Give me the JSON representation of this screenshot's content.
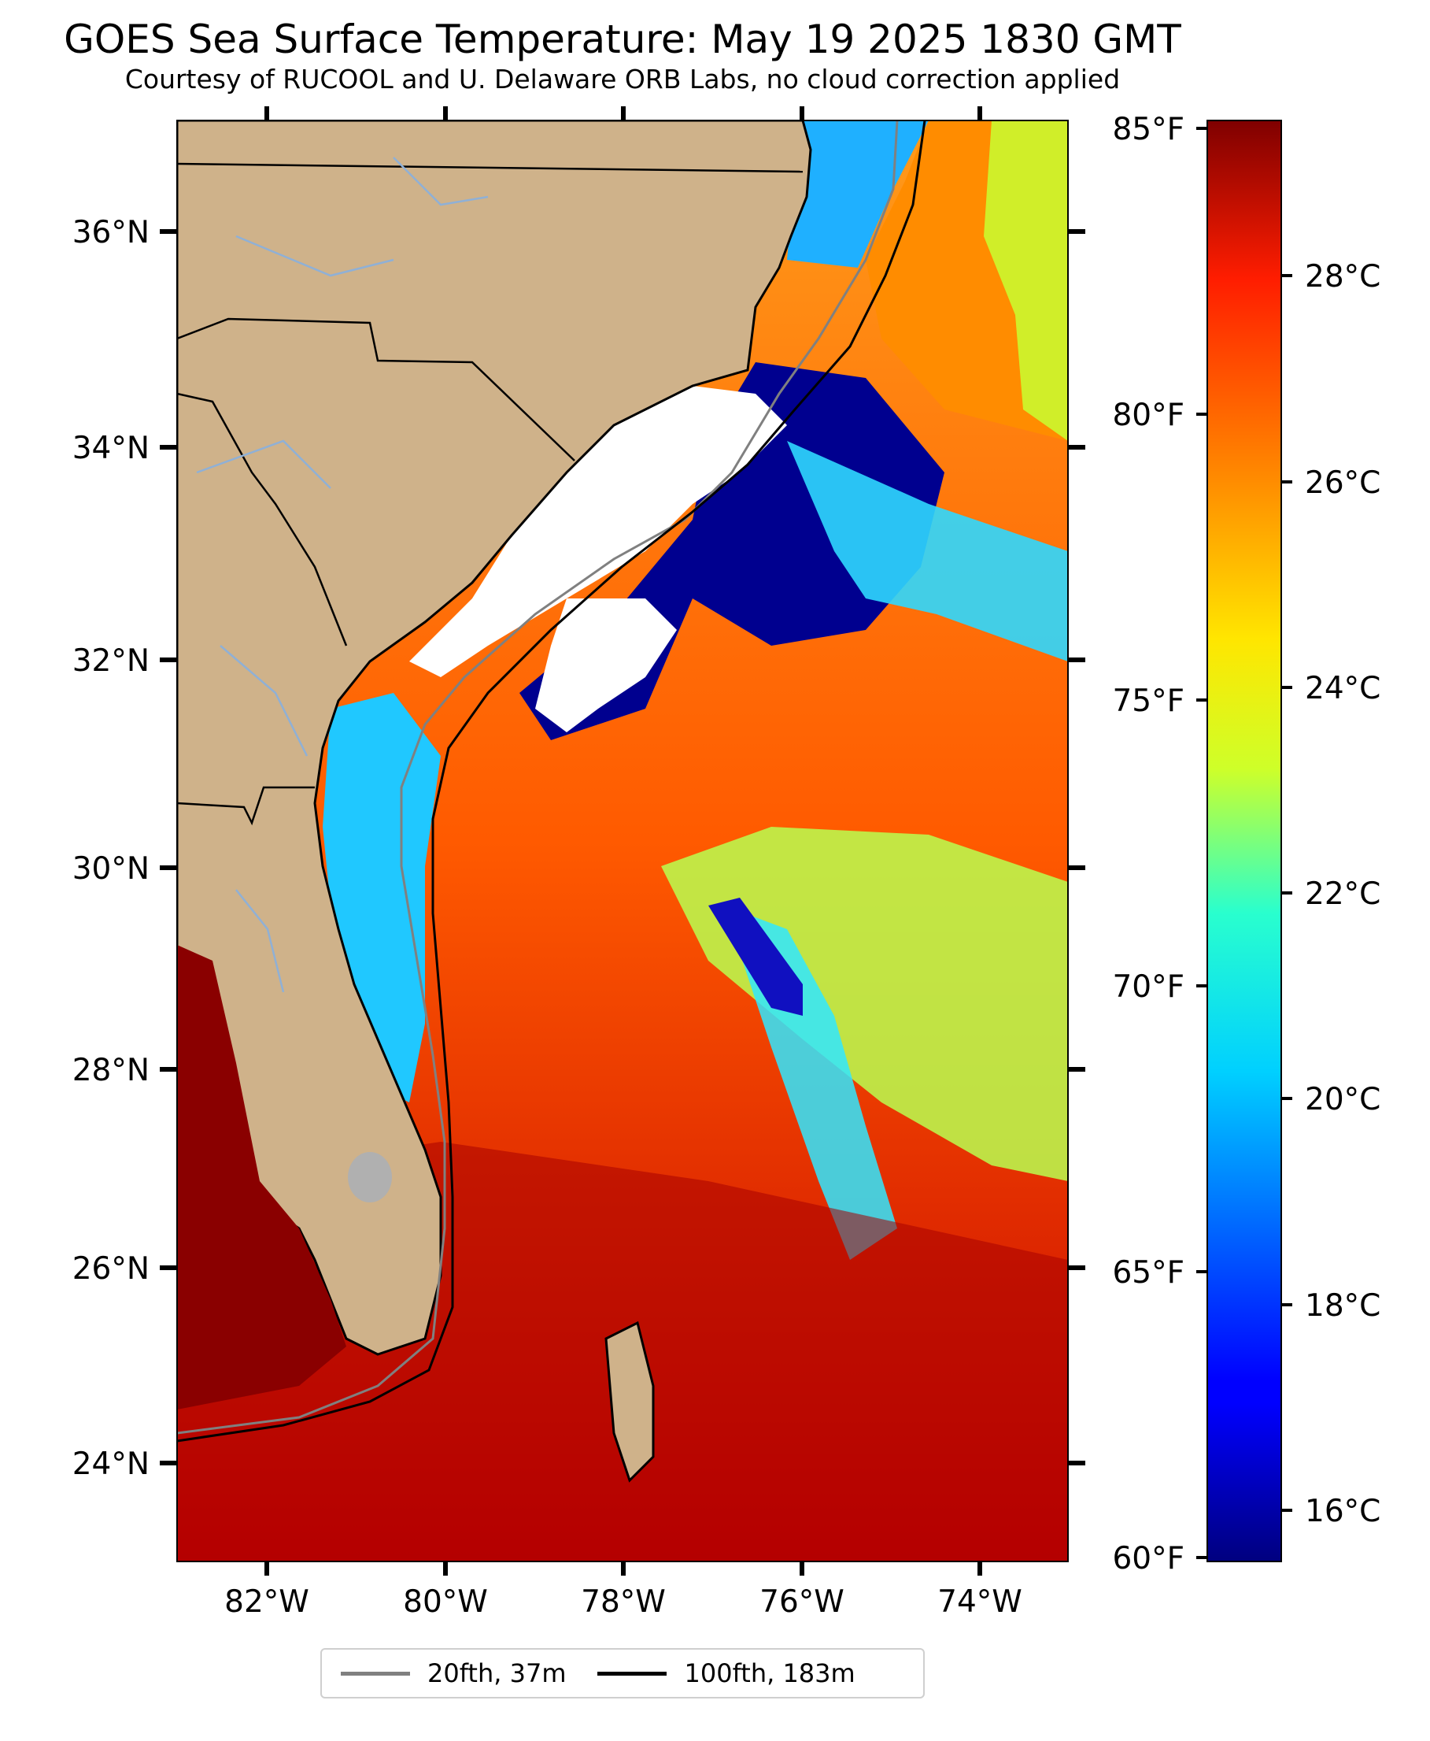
{
  "title": "GOES Sea Surface Temperature: May 19 2025 1830 GMT",
  "subtitle": "Courtesy of RUCOOL and U. Delaware ORB Labs, no cloud correction applied",
  "map": {
    "lon_ticks": [
      "82°W",
      "80°W",
      "78°W",
      "76°W",
      "74°W"
    ],
    "lat_ticks": [
      "36°N",
      "34°N",
      "32°N",
      "30°N",
      "28°N",
      "26°N",
      "24°N"
    ],
    "lon_range": [
      -83,
      -73
    ],
    "lat_range": [
      23.1,
      37.0
    ],
    "colors": {
      "land": "#cfb28a",
      "rivers": "#8fb0d6",
      "borders": "#000000",
      "cloud": "#ffffff",
      "lake": "#b0b0b0"
    }
  },
  "colorbar": {
    "colormap": "jet",
    "fahrenheit_ticks": [
      "85°F",
      "80°F",
      "75°F",
      "70°F",
      "65°F",
      "60°F"
    ],
    "celsius_ticks": [
      "28°C",
      "26°C",
      "24°C",
      "22°C",
      "20°C",
      "18°C",
      "16°C"
    ],
    "range_f": [
      60,
      85
    ]
  },
  "legend": {
    "items": [
      {
        "label": "20fth, 37m",
        "color": "#808080"
      },
      {
        "label": "100fth, 183m",
        "color": "#000000"
      }
    ]
  }
}
